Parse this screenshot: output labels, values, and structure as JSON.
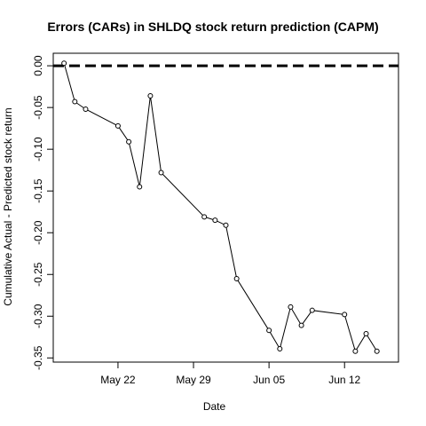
{
  "chart_data": {
    "type": "line",
    "title": "Errors (CARs) in SHLDQ stock return prediction (CAPM)",
    "xlabel": "Date",
    "ylabel": "Cumulative Actual - Predicted stock return",
    "x_ticks": [
      "May 22",
      "May 29",
      "Jun 05",
      "Jun 12"
    ],
    "y_ticks": [
      "0.00",
      "-0.05",
      "-0.10",
      "-0.15",
      "-0.20",
      "-0.25",
      "-0.30",
      "-0.35"
    ],
    "xlim": [
      "2017-05-16",
      "2017-06-17"
    ],
    "ylim": [
      -0.355,
      0.015
    ],
    "reference_line": {
      "y": 0.0,
      "style": "dashed",
      "color": "#000000"
    },
    "grid": false,
    "series": [
      {
        "points": [
          {
            "x": "2017-05-17",
            "y": 0.003
          },
          {
            "x": "2017-05-18",
            "y": -0.043
          },
          {
            "x": "2017-05-19",
            "y": -0.052
          },
          {
            "x": "2017-05-22",
            "y": -0.072
          },
          {
            "x": "2017-05-23",
            "y": -0.091
          },
          {
            "x": "2017-05-24",
            "y": -0.145
          },
          {
            "x": "2017-05-25",
            "y": -0.036
          },
          {
            "x": "2017-05-26",
            "y": -0.128
          },
          {
            "x": "2017-05-30",
            "y": -0.181
          },
          {
            "x": "2017-05-31",
            "y": -0.185
          },
          {
            "x": "2017-06-01",
            "y": -0.191
          },
          {
            "x": "2017-06-02",
            "y": -0.255
          },
          {
            "x": "2017-06-05",
            "y": -0.317
          },
          {
            "x": "2017-06-06",
            "y": -0.339
          },
          {
            "x": "2017-06-07",
            "y": -0.289
          },
          {
            "x": "2017-06-08",
            "y": -0.311
          },
          {
            "x": "2017-06-09",
            "y": -0.293
          },
          {
            "x": "2017-06-12",
            "y": -0.298
          },
          {
            "x": "2017-06-13",
            "y": -0.342
          },
          {
            "x": "2017-06-14",
            "y": -0.321
          },
          {
            "x": "2017-06-15",
            "y": -0.342
          }
        ]
      }
    ]
  }
}
